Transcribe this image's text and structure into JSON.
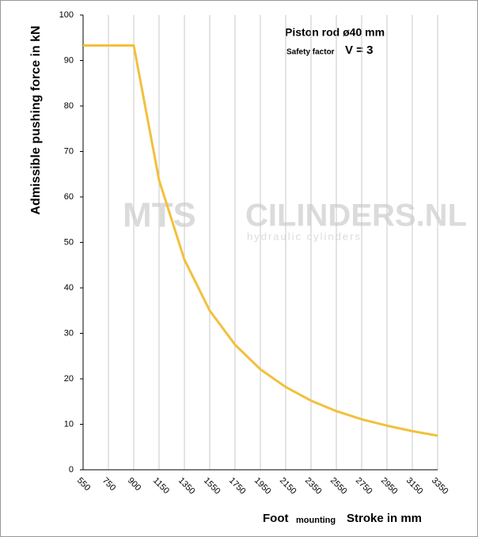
{
  "chart_data": {
    "type": "line",
    "title": "Piston rod ø40 mm",
    "annotations": [
      "Safety factor",
      "V = 3"
    ],
    "ylabel": "Admissible pushing force in kN",
    "xlabel": [
      "Foot",
      "mounting",
      "Stroke in mm"
    ],
    "watermark": [
      "MTS",
      "CILINDERS.NL",
      "hydraulic cylinders"
    ],
    "categories": [
      550,
      750,
      900,
      1150,
      1350,
      1550,
      1750,
      1950,
      2150,
      2350,
      2550,
      2750,
      2950,
      3150,
      3350
    ],
    "series": [
      {
        "name": "Admissible pushing force",
        "color": "#f2c03c",
        "values": [
          93.3,
          93.3,
          93.3,
          63.7,
          46.2,
          35,
          27.5,
          22.1,
          18.2,
          15.2,
          12.9,
          11.1,
          9.7,
          8.5,
          7.5
        ]
      }
    ],
    "ylim": [
      0,
      100
    ],
    "yticks": [
      0,
      10,
      20,
      30,
      40,
      50,
      60,
      70,
      80,
      90,
      100
    ],
    "grid": "x"
  }
}
